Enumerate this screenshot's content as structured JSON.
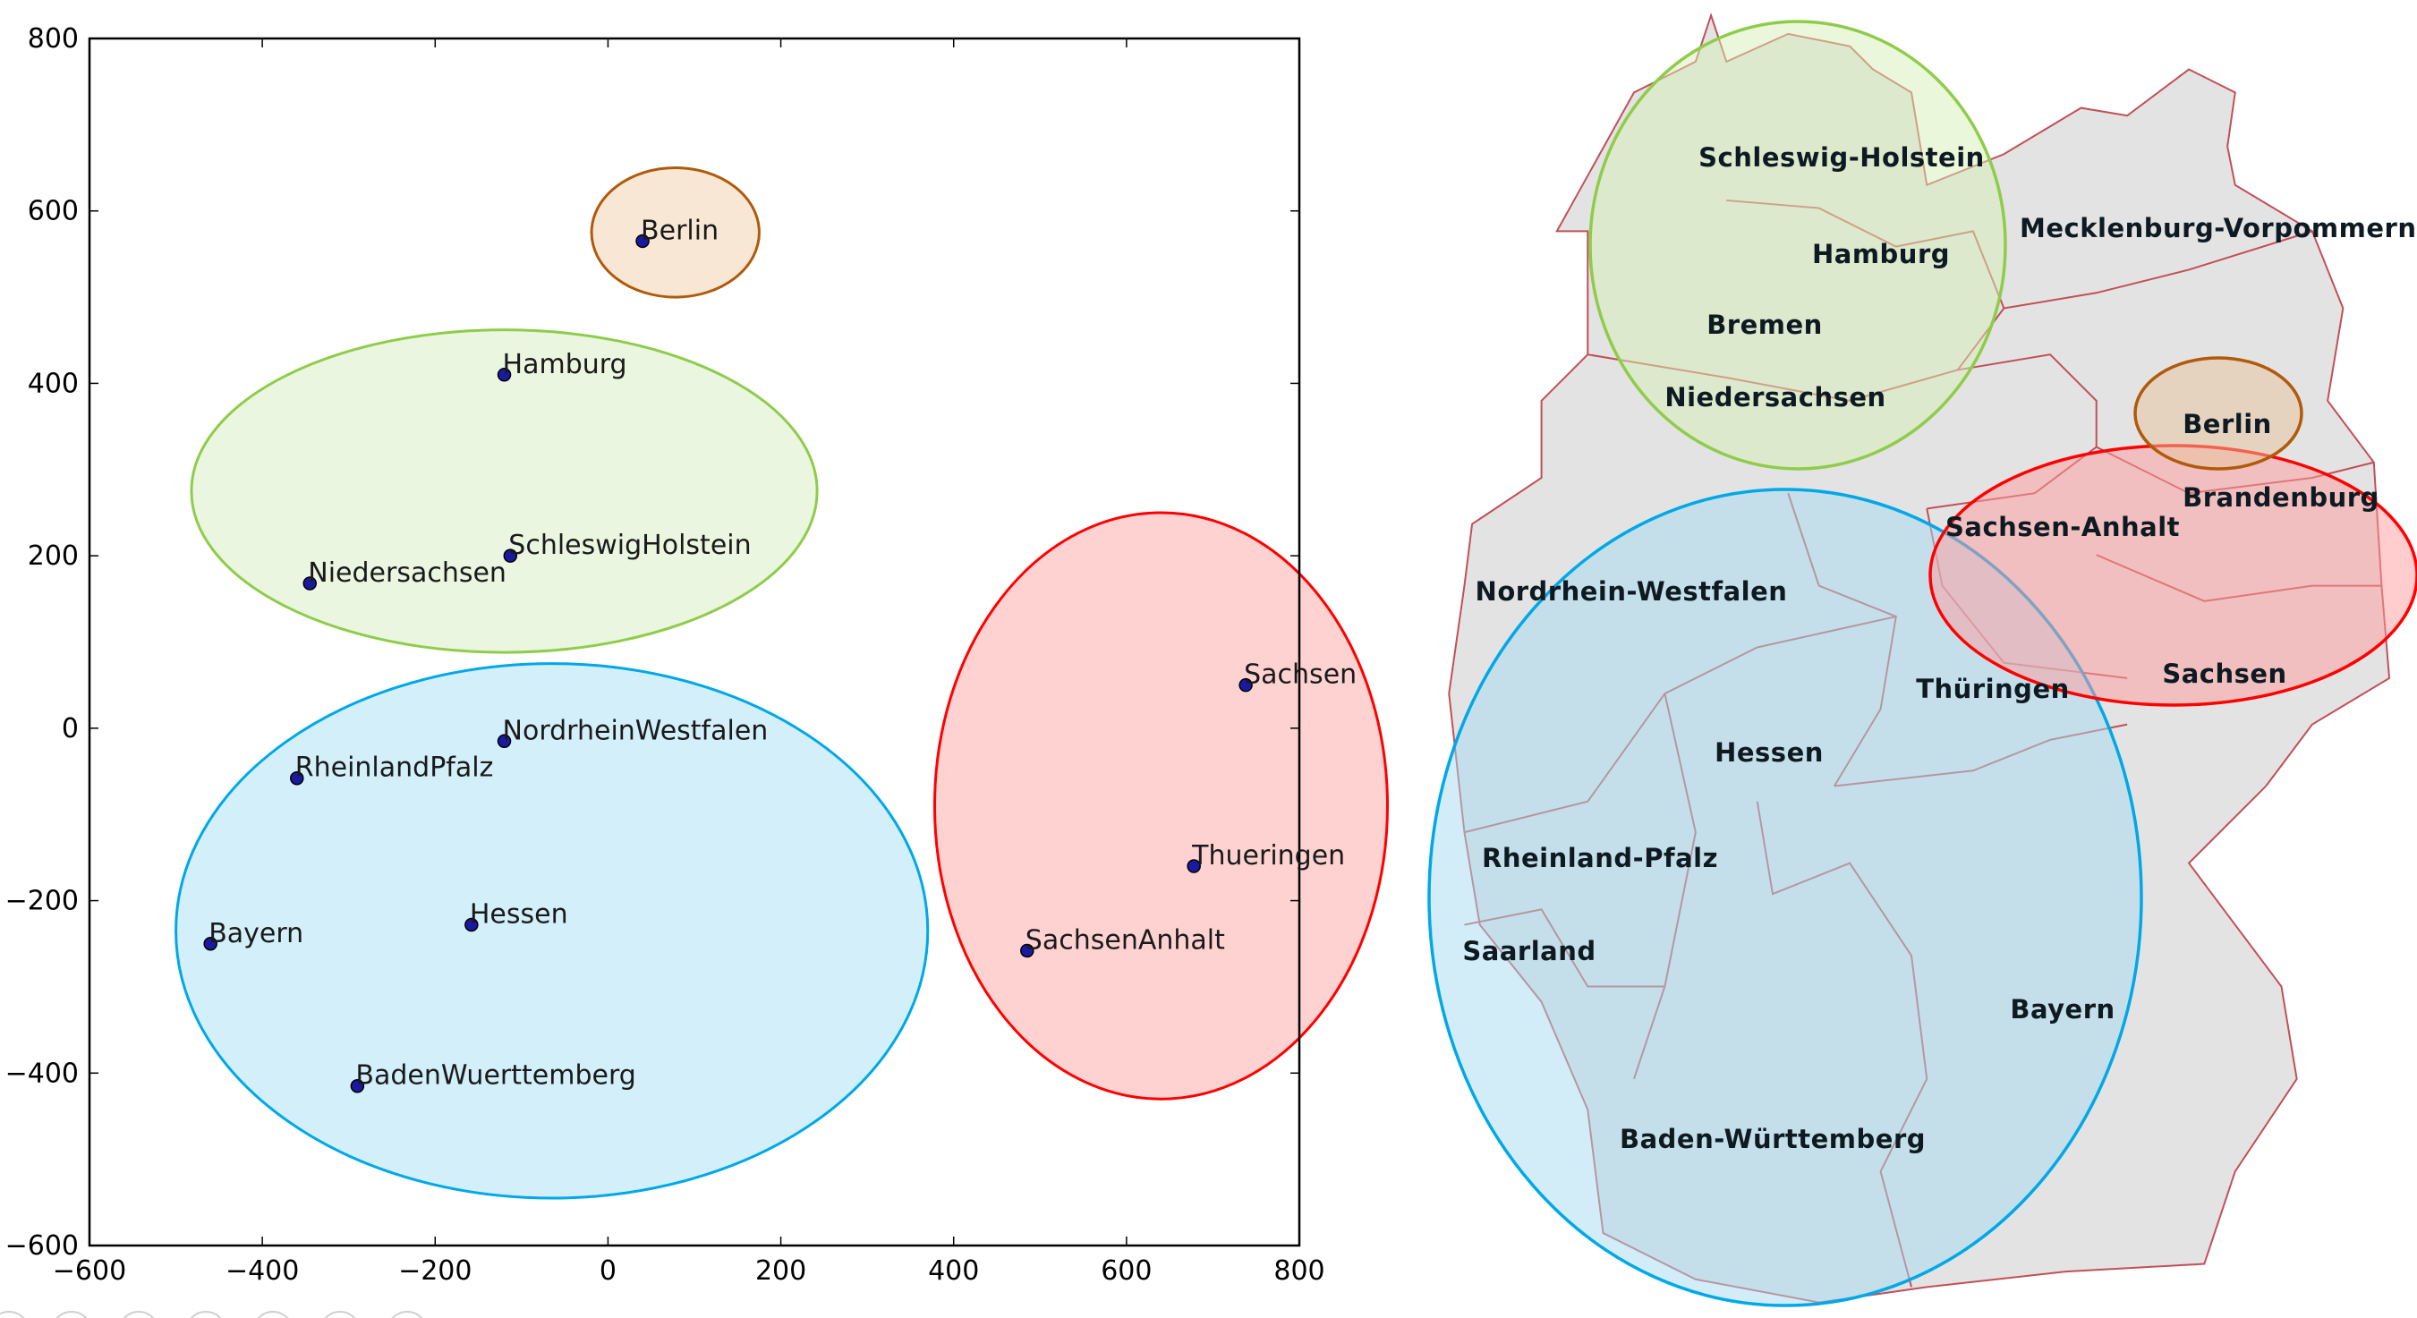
{
  "chart_data": {
    "type": "scatter",
    "xlim": [
      -600,
      800
    ],
    "ylim": [
      -600,
      800
    ],
    "xticks": [
      -600,
      -400,
      -200,
      0,
      200,
      400,
      600,
      800
    ],
    "yticks": [
      -600,
      -400,
      -200,
      0,
      200,
      400,
      600,
      800
    ],
    "grid": false,
    "marker_color": "#1a1aa0",
    "points": [
      {
        "label": "Berlin",
        "x": 40,
        "y": 565
      },
      {
        "label": "Hamburg",
        "x": -120,
        "y": 410
      },
      {
        "label": "SchleswigHolstein",
        "x": -113,
        "y": 200
      },
      {
        "label": "Niedersachsen",
        "x": -345,
        "y": 168
      },
      {
        "label": "NordrheinWestfalen",
        "x": -120,
        "y": -15
      },
      {
        "label": "RheinlandPfalz",
        "x": -360,
        "y": -58
      },
      {
        "label": "Bayern",
        "x": -460,
        "y": -250
      },
      {
        "label": "Hessen",
        "x": -158,
        "y": -228
      },
      {
        "label": "BadenWuerttemberg",
        "x": -290,
        "y": -415
      },
      {
        "label": "Sachsen",
        "x": 738,
        "y": 50
      },
      {
        "label": "Thueringen",
        "x": 678,
        "y": -160
      },
      {
        "label": "SachsenAnhalt",
        "x": 485,
        "y": -258
      }
    ],
    "clusters": [
      {
        "cx": 78,
        "cy": 575,
        "rx": 97,
        "ry": 75,
        "stroke": "#b05a0a",
        "fill": "#f9e6d3"
      },
      {
        "cx": -120,
        "cy": 275,
        "rx": 362,
        "ry": 187,
        "stroke": "#8fcc4a",
        "fill": "#e9f5de"
      },
      {
        "cx": -65,
        "cy": -235,
        "rx": 435,
        "ry": 310,
        "stroke": "#00a8e8",
        "fill": "#d0eefa"
      },
      {
        "cx": 640,
        "cy": -90,
        "rx": 262,
        "ry": 340,
        "stroke": "#ff0000",
        "fill": "#ffd0d0"
      }
    ]
  },
  "map": {
    "fill": "#e3e3e3",
    "border_color": "#c0505a",
    "labels": [
      "Schleswig-Holstein",
      "Mecklenburg-Vorpommern",
      "Hamburg",
      "Bremen",
      "Niedersachsen",
      "Berlin",
      "Brandenburg",
      "Sachsen-Anhalt",
      "Nordrhein-Westfalen",
      "Thüringen",
      "Sachsen",
      "Hessen",
      "Rheinland-Pfalz",
      "Saarland",
      "Bayern",
      "Baden-Württemberg"
    ]
  }
}
